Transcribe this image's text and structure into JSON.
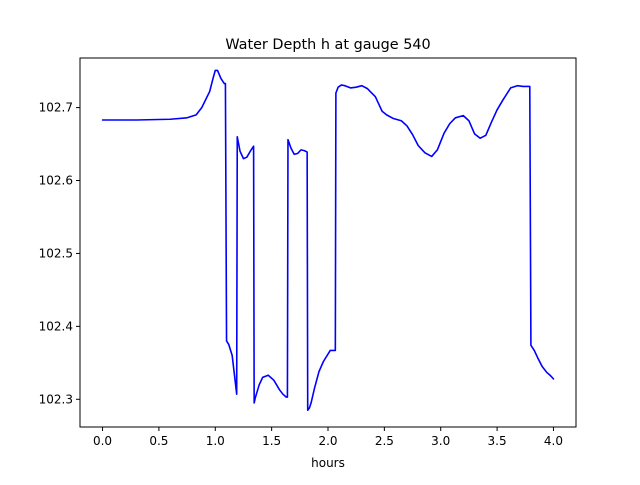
{
  "chart_data": {
    "type": "line",
    "title": "Water Depth h at gauge 540",
    "xlabel": "hours",
    "ylabel": "",
    "xlim": [
      -0.2,
      4.2
    ],
    "ylim": [
      102.262,
      102.768
    ],
    "xticks": [
      0.0,
      0.5,
      1.0,
      1.5,
      2.0,
      2.5,
      3.0,
      3.5,
      4.0
    ],
    "xtick_labels": [
      "0.0",
      "0.5",
      "1.0",
      "1.5",
      "2.0",
      "2.5",
      "3.0",
      "3.5",
      "4.0"
    ],
    "yticks": [
      102.3,
      102.4,
      102.5,
      102.6,
      102.7
    ],
    "ytick_labels": [
      "102.3",
      "102.4",
      "102.5",
      "102.6",
      "102.7"
    ],
    "grid": false,
    "legend": "none",
    "series": [
      {
        "color": "#0000ff",
        "x": [
          0.0,
          0.3,
          0.6,
          0.75,
          0.83,
          0.88,
          0.95,
          0.98,
          1.0,
          1.02,
          1.05,
          1.08,
          1.09,
          1.1,
          1.12,
          1.15,
          1.19,
          1.195,
          1.22,
          1.25,
          1.28,
          1.31,
          1.34,
          1.345,
          1.355,
          1.39,
          1.42,
          1.47,
          1.52,
          1.57,
          1.6,
          1.63,
          1.64,
          1.645,
          1.67,
          1.7,
          1.73,
          1.76,
          1.79,
          1.815,
          1.82,
          1.835,
          1.85,
          1.88,
          1.92,
          1.96,
          2.02,
          2.065,
          2.07,
          2.09,
          2.12,
          2.15,
          2.2,
          2.25,
          2.3,
          2.35,
          2.42,
          2.48,
          2.52,
          2.58,
          2.65,
          2.7,
          2.75,
          2.8,
          2.86,
          2.92,
          2.97,
          3.03,
          3.08,
          3.13,
          3.2,
          3.25,
          3.3,
          3.35,
          3.4,
          3.45,
          3.5,
          3.55,
          3.62,
          3.68,
          3.73,
          3.76,
          3.79,
          3.8,
          3.83,
          3.86,
          3.9,
          3.94,
          3.97,
          4.0
        ],
        "y": [
          102.683,
          102.683,
          102.684,
          102.686,
          102.69,
          102.7,
          102.722,
          102.74,
          102.751,
          102.751,
          102.74,
          102.733,
          102.733,
          102.38,
          102.375,
          102.36,
          102.307,
          102.66,
          102.64,
          102.63,
          102.632,
          102.64,
          102.647,
          102.295,
          102.302,
          102.32,
          102.33,
          102.333,
          102.326,
          102.313,
          102.307,
          102.303,
          102.303,
          102.656,
          102.645,
          102.636,
          102.637,
          102.642,
          102.641,
          102.639,
          102.285,
          102.288,
          102.295,
          102.315,
          102.338,
          102.352,
          102.367,
          102.367,
          102.72,
          102.728,
          102.731,
          102.73,
          102.727,
          102.728,
          102.73,
          102.726,
          102.715,
          102.695,
          102.69,
          102.685,
          102.682,
          102.675,
          102.663,
          102.648,
          102.638,
          102.633,
          102.642,
          102.665,
          102.678,
          102.686,
          102.689,
          102.682,
          102.664,
          102.658,
          102.662,
          102.68,
          102.697,
          102.71,
          102.727,
          102.73,
          102.729,
          102.729,
          102.729,
          102.374,
          102.367,
          102.357,
          102.345,
          102.337,
          102.333,
          102.328
        ]
      }
    ]
  }
}
